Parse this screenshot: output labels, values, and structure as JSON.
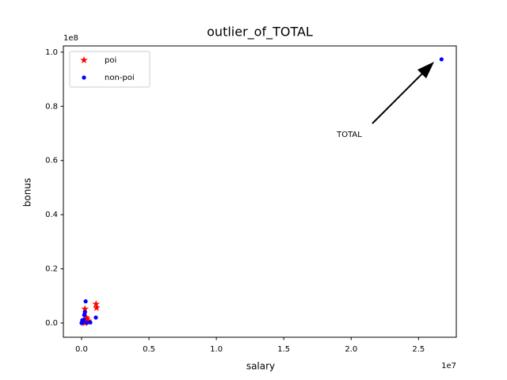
{
  "chart_data": {
    "type": "scatter",
    "title": "outlier_of_TOTAL",
    "x_label": "salary",
    "y_label": "bonus",
    "x_offset_label": "1e7",
    "y_offset_label": "1e8",
    "xlim": [
      -1350000,
      27800000
    ],
    "ylim": [
      -5260000,
      102300000
    ],
    "xticks": [
      {
        "value": 0,
        "label": "0.0"
      },
      {
        "value": 5000000,
        "label": "0.5"
      },
      {
        "value": 10000000,
        "label": "1.0"
      },
      {
        "value": 15000000,
        "label": "1.5"
      },
      {
        "value": 20000000,
        "label": "2.0"
      },
      {
        "value": 25000000,
        "label": "2.5"
      }
    ],
    "yticks": [
      {
        "value": 0,
        "label": "0.0"
      },
      {
        "value": 20000000,
        "label": "0.2"
      },
      {
        "value": 40000000,
        "label": "0.4"
      },
      {
        "value": 60000000,
        "label": "0.6"
      },
      {
        "value": 80000000,
        "label": "0.8"
      },
      {
        "value": 100000000,
        "label": "1.0"
      }
    ],
    "legend": "upper left",
    "annotation": "TOTAL",
    "series": [
      {
        "name": "poi",
        "color": "#ff0000",
        "marker": "star",
        "x": [
          1072321,
          1111258,
          250000,
          400000,
          300000,
          200000,
          350000,
          500000,
          250000
        ],
        "y": [
          7000000,
          5600000,
          5200000,
          1500000,
          1000000,
          200000,
          2000000,
          800000,
          0
        ]
      },
      {
        "name": "non-poi",
        "color": "#0000ff",
        "marker": "circle",
        "x": [
          26704229,
          300000,
          1060000,
          0,
          650000,
          200000,
          250000,
          100000,
          150000,
          400000,
          50000
        ],
        "y": [
          97343619,
          8000000,
          2000000,
          0,
          200000,
          3000000,
          4000000,
          500000,
          1200000,
          100000,
          1000000
        ]
      }
    ]
  }
}
